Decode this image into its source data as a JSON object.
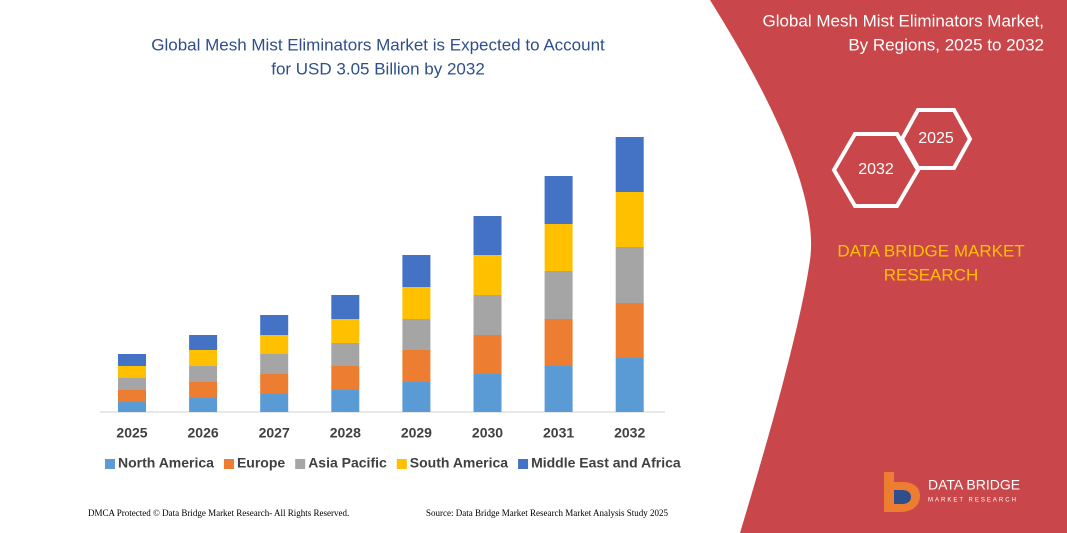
{
  "chart_data": {
    "type": "bar",
    "stacked": true,
    "title": [
      "Global Mesh Mist Eliminators Market is Expected to Account",
      "for USD 3.05 Billion by 2032"
    ],
    "categories": [
      "2025",
      "2026",
      "2027",
      "2028",
      "2029",
      "2030",
      "2031",
      "2032"
    ],
    "series": [
      {
        "name": "North America",
        "color": "#5b9bd5",
        "values": [
          10,
          14,
          18,
          22,
          30,
          38,
          46,
          54
        ]
      },
      {
        "name": "Europe",
        "color": "#ed7d31",
        "values": [
          12,
          16,
          20,
          24,
          32,
          39,
          47,
          55
        ]
      },
      {
        "name": "Asia Pacific",
        "color": "#a5a5a5",
        "values": [
          12,
          16,
          20,
          23,
          31,
          40,
          48,
          56
        ]
      },
      {
        "name": "South America",
        "color": "#ffc000",
        "values": [
          12,
          16,
          19,
          24,
          32,
          40,
          47,
          55
        ]
      },
      {
        "name": "Middle East and Africa",
        "color": "#4472c4",
        "values": [
          12,
          15,
          20,
          24,
          32,
          39,
          48,
          55
        ]
      }
    ],
    "ylim": [
      0,
      300
    ],
    "legend": "bottom"
  },
  "panel": {
    "title": [
      "Global Mesh Mist Eliminators Market,",
      "By Regions, 2025 to 2032"
    ],
    "hex_small": "2025",
    "hex_large": "2032",
    "brand": [
      "DATA BRIDGE MARKET",
      "RESEARCH"
    ]
  },
  "footer": {
    "left": "DMCA Protected © Data Bridge Market Research- All Rights Reserved.",
    "right": "Source: Data Bridge Market Research Market Analysis Study 2025"
  },
  "logo": {
    "name": "DATA BRIDGE",
    "tagline": "MARKET RESEARCH"
  }
}
